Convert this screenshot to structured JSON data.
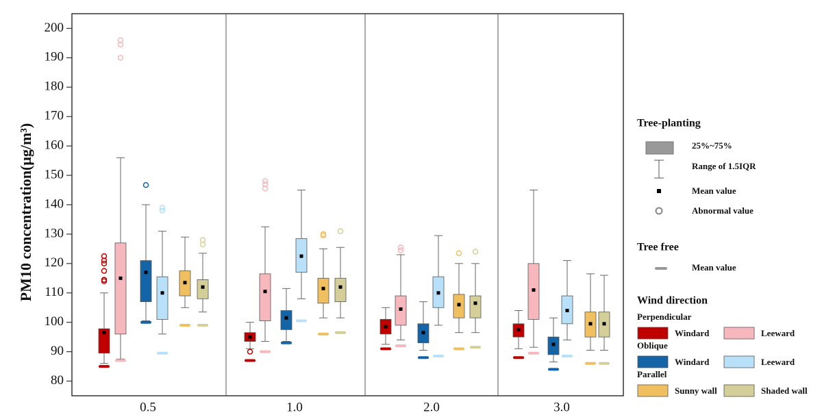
{
  "chart_data": {
    "type": "box",
    "y_label": "PM10 concentration(μg/m³)",
    "categories": [
      "0.5",
      "1.0",
      "2.0",
      "3.0"
    ],
    "ylim": [
      75,
      205
    ],
    "yticks": [
      80,
      90,
      100,
      110,
      120,
      130,
      140,
      150,
      160,
      170,
      180,
      190,
      200
    ],
    "series": [
      {
        "name": "Windard",
        "color": "#c00000",
        "q1": [
          89.5,
          93.5,
          96,
          95
        ],
        "q3": [
          97.8,
          96.5,
          101,
          99.5
        ],
        "whisker_low": [
          86,
          91,
          92.5,
          91
        ],
        "whisker_high": [
          110,
          100,
          105,
          104
        ],
        "mean": [
          96.5,
          95,
          98.5,
          97.5
        ],
        "outliers": [
          [
            114,
            114.5,
            117.5,
            120,
            121,
            122.5
          ],
          [
            90
          ],
          [],
          []
        ],
        "tree_free_mean": [
          85,
          87,
          91,
          88
        ]
      },
      {
        "name": "Leeward",
        "color": "#f6b8bd",
        "q1": [
          96,
          100.5,
          99,
          101
        ],
        "q3": [
          127,
          116.5,
          109,
          120
        ],
        "whisker_low": [
          87.5,
          93.5,
          94,
          91.5
        ],
        "whisker_high": [
          156,
          132.5,
          123,
          145
        ],
        "mean": [
          115,
          110.5,
          104.5,
          111
        ],
        "outliers": [
          [
            190,
            194.5,
            196
          ],
          [
            145.5,
            147,
            148
          ],
          [
            124.5,
            125.5
          ],
          []
        ],
        "tree_free_mean": [
          87,
          90,
          92,
          89.5
        ]
      },
      {
        "name": "Windard",
        "color": "#1464a8",
        "q1": [
          107,
          97.5,
          93,
          89
        ],
        "q3": [
          121,
          104,
          99.5,
          95
        ],
        "whisker_low": [
          100.5,
          93.5,
          90.5,
          86.5
        ],
        "whisker_high": [
          140,
          111.5,
          107,
          101.5
        ],
        "mean": [
          117,
          101.5,
          96.5,
          92.5
        ],
        "outliers": [
          [
            146.7
          ],
          [],
          [],
          []
        ],
        "tree_free_mean": [
          100,
          93,
          88,
          84
        ]
      },
      {
        "name": "Leeward",
        "color": "#b8e0f8",
        "q1": [
          101,
          117,
          105,
          99.5
        ],
        "q3": [
          115.5,
          128.5,
          115.5,
          109
        ],
        "whisker_low": [
          96,
          108,
          99,
          94
        ],
        "whisker_high": [
          131,
          145,
          129.5,
          121
        ],
        "mean": [
          110,
          122.5,
          110,
          104
        ],
        "outliers": [
          [
            138,
            139
          ],
          [],
          [],
          []
        ],
        "tree_free_mean": [
          89.5,
          100.5,
          88.5,
          88.5
        ]
      },
      {
        "name": "Sunny wall",
        "color": "#f0c060",
        "q1": [
          109,
          106.5,
          101.5,
          95
        ],
        "q3": [
          117.5,
          115,
          109.5,
          103.5
        ],
        "whisker_low": [
          105,
          101.5,
          96.5,
          90.5
        ],
        "whisker_high": [
          129,
          125,
          120,
          116.5
        ],
        "mean": [
          113.5,
          111.5,
          106,
          99.5
        ],
        "outliers": [
          [],
          [
            129.5,
            130
          ],
          [
            123.5
          ],
          []
        ],
        "tree_free_mean": [
          99,
          96,
          91,
          86
        ]
      },
      {
        "name": "Shaded wall",
        "color": "#d4cf98",
        "q1": [
          108,
          107,
          101.5,
          95
        ],
        "q3": [
          114.5,
          115,
          109,
          103.5
        ],
        "whisker_low": [
          103.5,
          101.5,
          96.5,
          90.5
        ],
        "whisker_high": [
          123.5,
          125.5,
          120,
          116
        ],
        "mean": [
          112,
          112,
          106.5,
          99.5
        ],
        "outliers": [
          [
            126.5,
            128
          ],
          [
            131
          ],
          [
            124
          ],
          []
        ],
        "tree_free_mean": [
          99,
          96.5,
          91.5,
          86
        ]
      }
    ],
    "legend": {
      "tree_planting": {
        "title": "Tree-planting",
        "items": [
          "25%~75%",
          "Range of 1.5IQR",
          "Mean value",
          "Abnormal value"
        ]
      },
      "tree_free": {
        "title": "Tree free",
        "item": "Mean value"
      },
      "wind_direction": {
        "title": "Wind direction",
        "groups": [
          "Perpendicular",
          "Oblique",
          "Parallel"
        ]
      }
    }
  }
}
